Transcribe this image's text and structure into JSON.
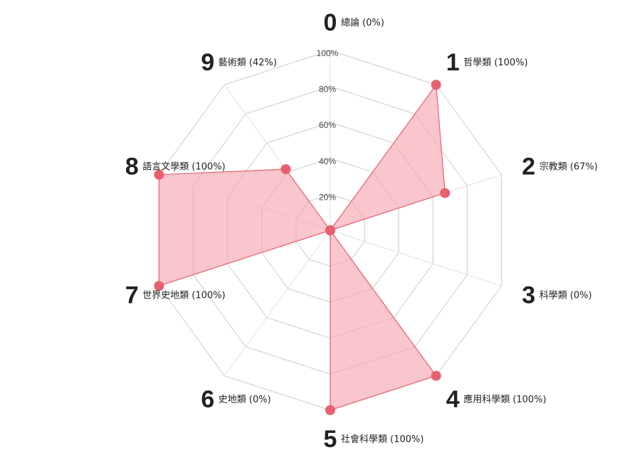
{
  "chart_data": {
    "type": "radar",
    "title": "",
    "categories": [
      {
        "number": "0",
        "label": "總論 (0%)",
        "value": 0
      },
      {
        "number": "1",
        "label": "哲學類 (100%)",
        "value": 100
      },
      {
        "number": "2",
        "label": "宗教類 (67%)",
        "value": 67
      },
      {
        "number": "3",
        "label": "科學類 (0%)",
        "value": 0
      },
      {
        "number": "4",
        "label": "應用科學類 (100%)",
        "value": 100
      },
      {
        "number": "5",
        "label": "社會科學類 (100%)",
        "value": 100
      },
      {
        "number": "6",
        "label": "史地類 (0%)",
        "value": 0
      },
      {
        "number": "7",
        "label": "世界史地類 (100%)",
        "value": 100
      },
      {
        "number": "8",
        "label": "語言文學類 (100%)",
        "value": 100
      },
      {
        "number": "9",
        "label": "藝術類 (42%)",
        "value": 42
      }
    ],
    "radial_ticks": [
      "20%",
      "40%",
      "60%",
      "80%",
      "100%"
    ],
    "radial_tick_values": [
      20,
      40,
      60,
      80,
      100
    ],
    "range": [
      0,
      100
    ],
    "grid": true,
    "colors": {
      "fill": "#f4a3ad",
      "stroke": "#e8606f",
      "point": "#e8606f",
      "grid": "#d4d4d4"
    }
  }
}
